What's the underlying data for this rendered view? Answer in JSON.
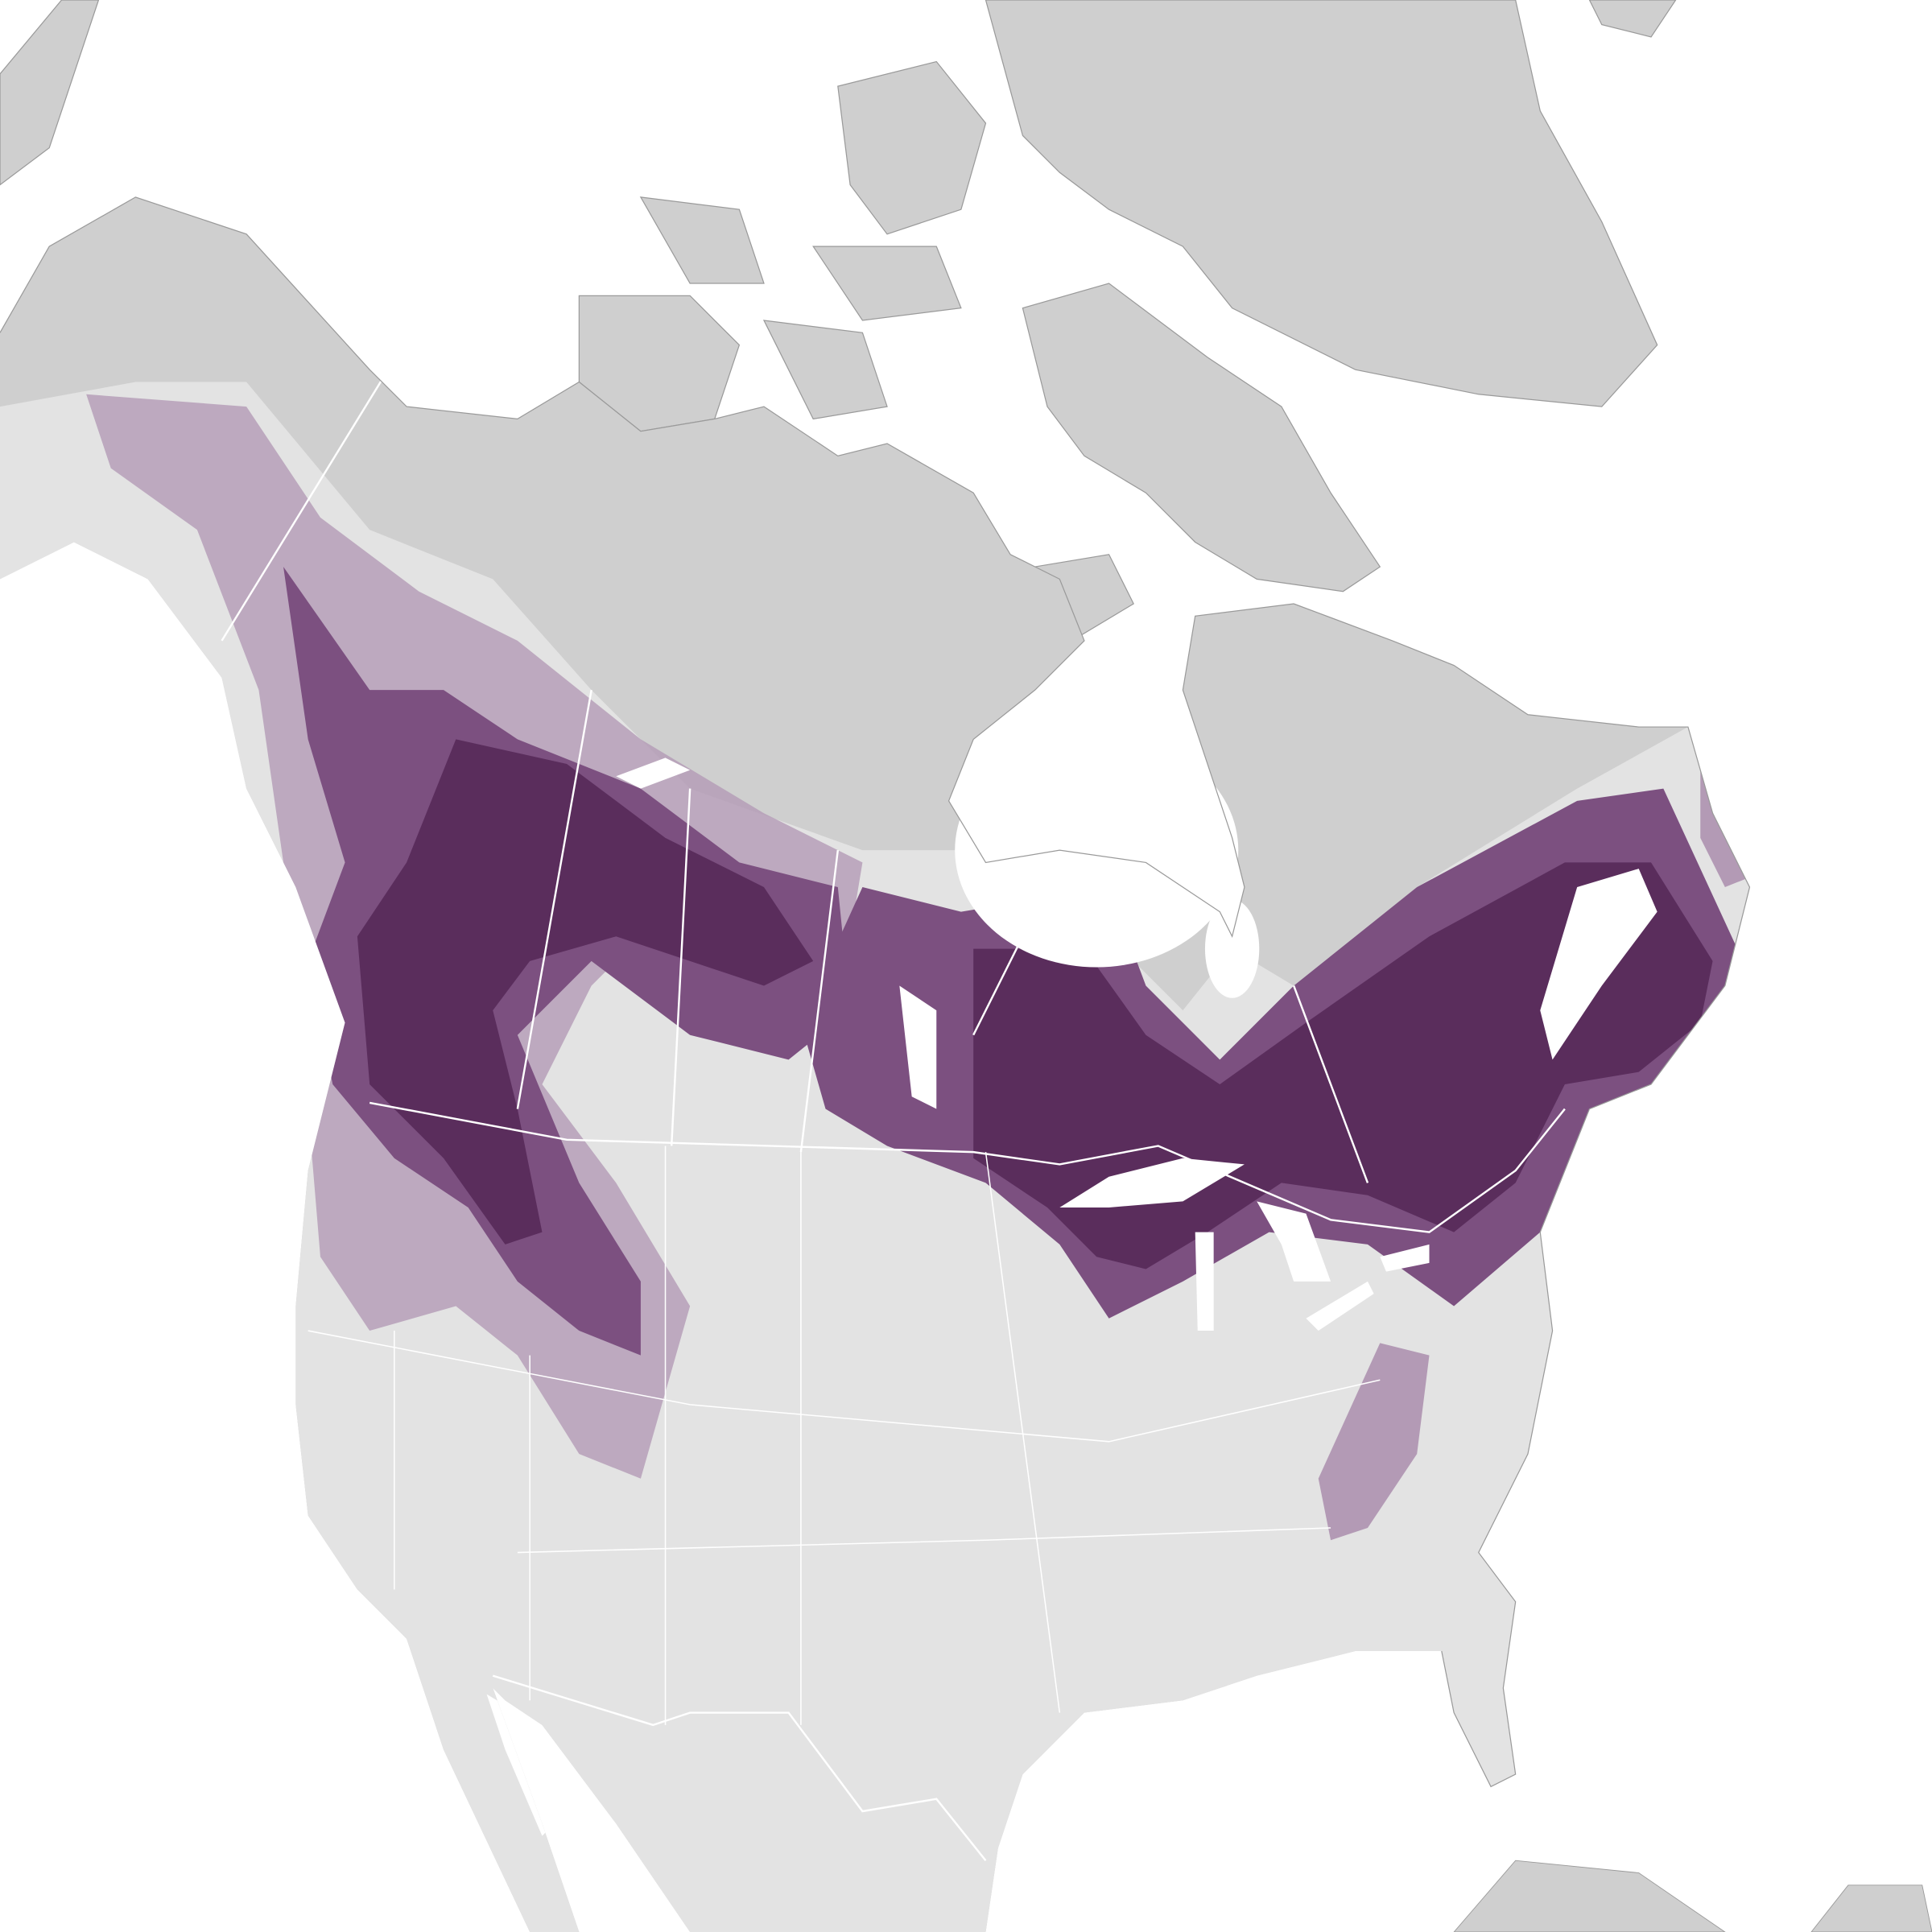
{
  "map": {
    "colors": {
      "ocean": "#ffffff",
      "land_outside_range": "#e3e3e3",
      "land_tundra": "#cfcfcf",
      "coastline": "#9a9a9a",
      "borders": "#ffffff",
      "abundance_high": "#5a2d5c",
      "abundance_medium": "#7c5080",
      "abundance_low": "#b39ab5"
    },
    "layers": [
      "ocean",
      "land",
      "tundra",
      "species-abundance",
      "lakes",
      "political-borders"
    ]
  }
}
